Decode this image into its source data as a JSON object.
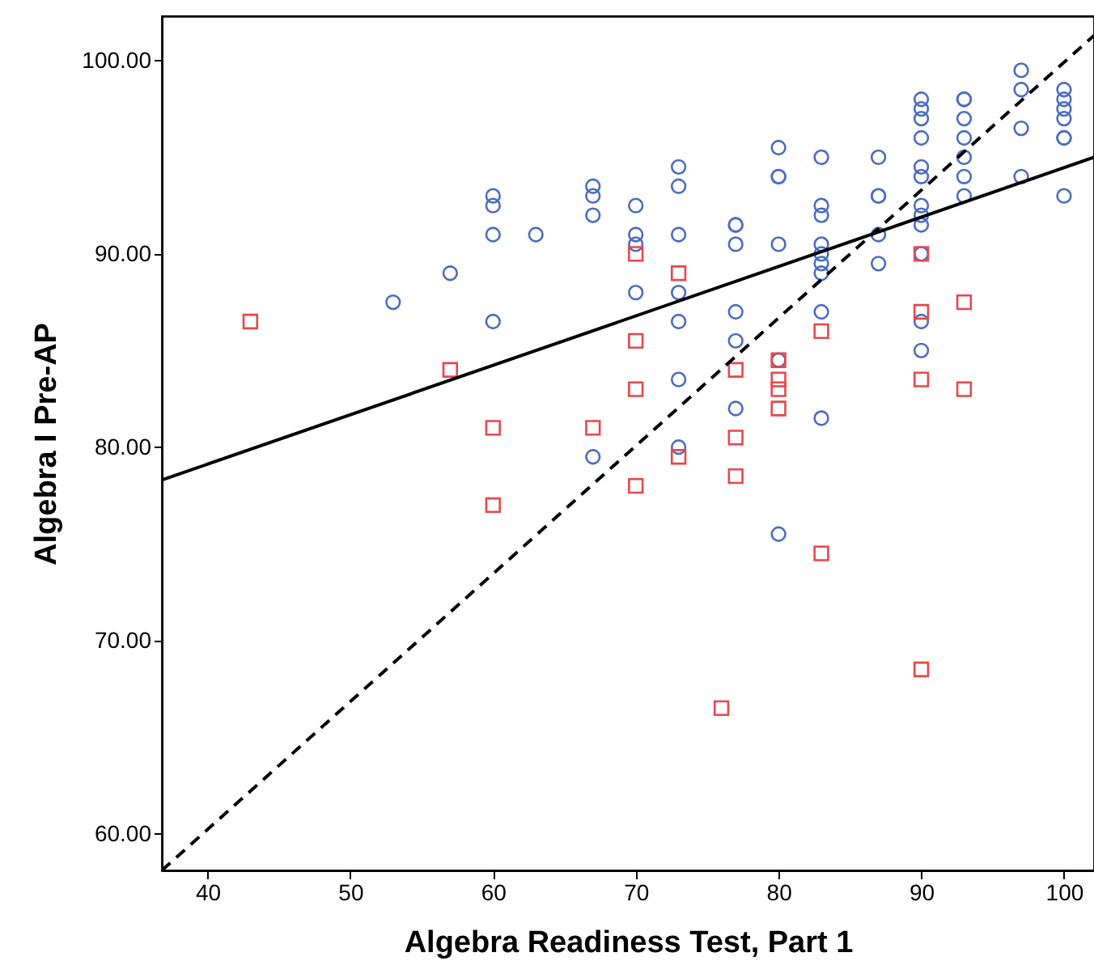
{
  "chart_data": {
    "type": "scatter",
    "xlabel": "Algebra Readiness Test, Part 1",
    "ylabel": "Algebra I Pre-AP",
    "xlim": [
      36.8,
      102.1
    ],
    "ylim": [
      58.1,
      102.3
    ],
    "xticks": [
      40,
      50,
      60,
      70,
      80,
      90,
      100
    ],
    "yticks": [
      {
        "value": 60,
        "label": "60.00"
      },
      {
        "value": 70,
        "label": "70.00"
      },
      {
        "value": 80,
        "label": "80.00"
      },
      {
        "value": 90,
        "label": "90.00"
      },
      {
        "value": 100,
        "label": "100.00"
      }
    ],
    "grid": false,
    "series": [
      {
        "type": "scatter",
        "marker": "circle",
        "color": "#4a6cc4",
        "x": [
          53,
          57,
          60,
          60,
          60,
          60,
          63,
          67,
          67,
          67,
          67,
          70,
          70,
          70,
          70,
          73,
          73,
          73,
          73,
          73,
          73,
          73,
          77,
          77,
          77,
          77,
          77,
          77,
          80,
          80,
          80,
          80,
          80,
          80,
          83,
          83,
          83,
          83,
          83,
          83,
          83,
          83,
          83,
          87,
          87,
          87,
          87,
          87,
          90,
          90,
          90,
          90,
          90,
          90,
          90,
          90,
          90,
          90,
          90,
          90,
          93,
          93,
          93,
          93,
          93,
          93,
          93,
          97,
          97,
          97,
          97,
          100,
          100,
          100,
          100,
          100,
          100,
          100
        ],
        "values": [
          87.5,
          89,
          93,
          92.5,
          91,
          86.5,
          91,
          93.5,
          93,
          92,
          79.5,
          92.5,
          91,
          90.5,
          88,
          94.5,
          93.5,
          91,
          88,
          86.5,
          83.5,
          80,
          91.5,
          91.5,
          90.5,
          87,
          85.5,
          82,
          95.5,
          94,
          94,
          90.5,
          84.5,
          75.5,
          95,
          92.5,
          92,
          90.5,
          90,
          89.5,
          89,
          87,
          81.5,
          95,
          93,
          93,
          91,
          89.5,
          98,
          97.5,
          97,
          96,
          94.5,
          94,
          92.5,
          92,
          91.5,
          90,
          86.5,
          85,
          98,
          98,
          97,
          96,
          95,
          94,
          93,
          99.5,
          98.5,
          96.5,
          94,
          98.5,
          98,
          97.5,
          97,
          96,
          96,
          93
        ]
      },
      {
        "type": "scatter",
        "marker": "square",
        "color": "#e8474a",
        "x": [
          43,
          57,
          60,
          60,
          67,
          70,
          70,
          70,
          70,
          73,
          73,
          76,
          77,
          77,
          77,
          80,
          80,
          80,
          80,
          83,
          83,
          90,
          90,
          90,
          90,
          93,
          93
        ],
        "values": [
          86.5,
          84,
          81,
          77,
          81,
          90,
          85.5,
          83,
          78,
          89,
          79.5,
          66.5,
          84,
          80.5,
          78.5,
          84.5,
          83.5,
          83,
          82,
          86,
          74.5,
          90,
          87,
          83.5,
          68.5,
          87.5,
          83
        ]
      },
      {
        "type": "line",
        "line_style": "solid",
        "color": "#000000",
        "x": [
          36.8,
          102.1
        ],
        "values": [
          78.3,
          95
        ]
      },
      {
        "type": "line",
        "line_style": "dashed",
        "color": "#000000",
        "x": [
          36.8,
          102.1
        ],
        "values": [
          58.1,
          101.3
        ]
      }
    ]
  }
}
